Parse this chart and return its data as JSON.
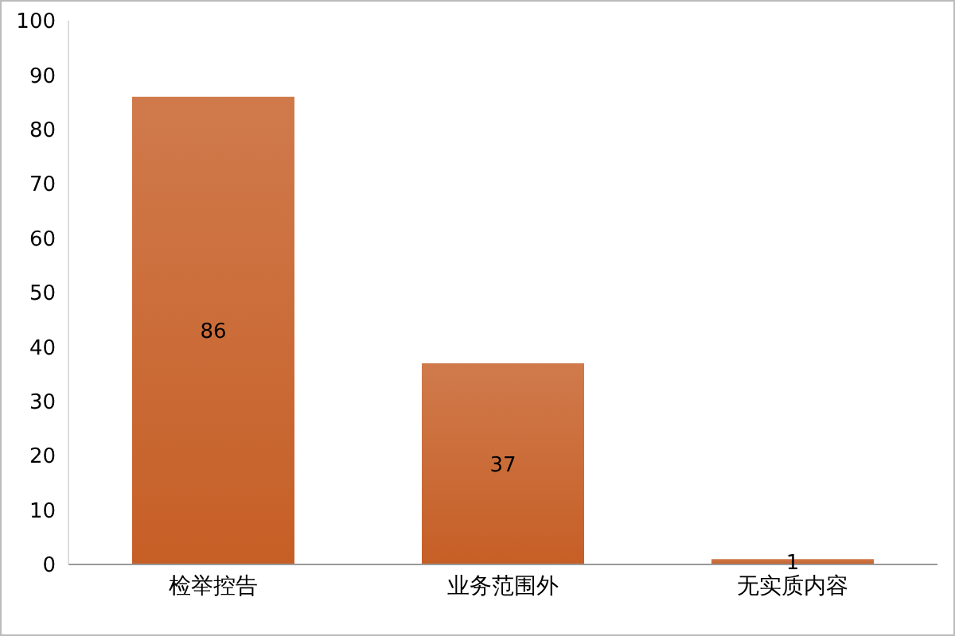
{
  "chart_data": {
    "type": "bar",
    "categories": [
      "检举控告",
      "业务范围外",
      "无实质内容"
    ],
    "values": [
      86,
      37,
      1
    ],
    "color": "#c65f26",
    "ylim": [
      0,
      100
    ],
    "yticks": [
      0,
      10,
      20,
      30,
      40,
      50,
      60,
      70,
      80,
      90,
      100
    ],
    "grid": false,
    "data_labels": true
  }
}
